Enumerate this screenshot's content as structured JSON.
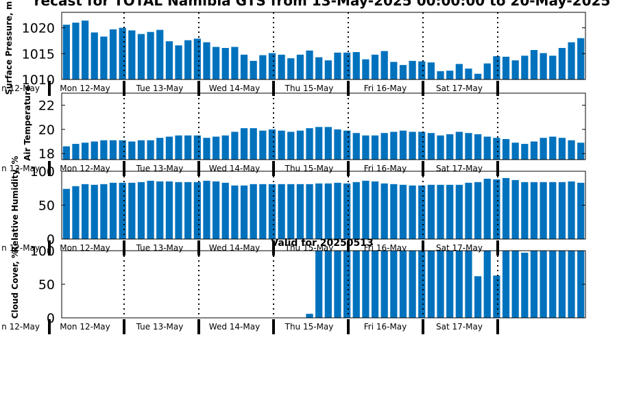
{
  "title": "recast for TOTAL Namibia GTS from 13-May-2025 00:00:00 to 20-May-2025",
  "subtitle": "Valid for 20250513",
  "colors": {
    "bar": "#0072bd",
    "axis": "#000000"
  },
  "day_labels": [
    "Mon 12-May",
    "Tue 13-May",
    "Wed 14-May",
    "Thu 15-May",
    "Fri 16-May",
    "Sat 17-May"
  ],
  "left_edge_day_label": "n 12-May",
  "chart_data": [
    {
      "type": "bar",
      "ylabel": "Surface Pressure, m",
      "ylim": [
        1010,
        1023
      ],
      "yticks": [
        1010,
        1015,
        1020
      ],
      "values": [
        1020.6,
        1021.0,
        1021.4,
        1019.1,
        1018.3,
        1019.7,
        1020.0,
        1019.5,
        1018.8,
        1019.2,
        1019.6,
        1017.4,
        1016.6,
        1017.6,
        1017.9,
        1017.2,
        1016.3,
        1016.1,
        1016.3,
        1014.8,
        1013.6,
        1014.7,
        1015.1,
        1014.8,
        1014.1,
        1014.8,
        1015.6,
        1014.3,
        1013.7,
        1015.2,
        1015.2,
        1015.3,
        1013.9,
        1014.8,
        1015.5,
        1013.4,
        1012.8,
        1013.6,
        1013.5,
        1013.3,
        1011.6,
        1011.7,
        1013.0,
        1012.1,
        1011.1,
        1013.1,
        1014.5,
        1014.4,
        1013.7,
        1014.6,
        1015.7,
        1015.1,
        1014.6,
        1016.1,
        1017.2,
        1018.0
      ]
    },
    {
      "type": "bar",
      "ylabel": "Air Temperature",
      "ylim": [
        17.5,
        23
      ],
      "yticks": [
        18,
        20,
        22
      ],
      "values": [
        18.6,
        18.8,
        18.9,
        19.0,
        19.1,
        19.1,
        19.1,
        19.0,
        19.1,
        19.1,
        19.3,
        19.4,
        19.5,
        19.5,
        19.5,
        19.3,
        19.4,
        19.5,
        19.8,
        20.1,
        20.1,
        19.9,
        20.0,
        19.9,
        19.8,
        19.9,
        20.1,
        20.2,
        20.2,
        20.0,
        19.9,
        19.7,
        19.5,
        19.5,
        19.7,
        19.8,
        19.9,
        19.8,
        19.8,
        19.7,
        19.5,
        19.6,
        19.8,
        19.7,
        19.6,
        19.4,
        19.3,
        19.2,
        18.9,
        18.8,
        19.0,
        19.3,
        19.4,
        19.3,
        19.1,
        18.9
      ]
    },
    {
      "type": "bar",
      "ylabel": "Relative Humidity, %",
      "ylim": [
        0,
        100
      ],
      "yticks": [
        0,
        50,
        100
      ],
      "values": [
        74,
        78,
        81,
        80,
        81,
        83,
        83,
        83,
        84,
        86,
        85,
        85,
        84,
        84,
        84,
        86,
        85,
        83,
        79,
        79,
        81,
        81,
        81,
        81,
        81,
        81,
        81,
        82,
        82,
        83,
        82,
        84,
        86,
        85,
        82,
        81,
        80,
        79,
        79,
        80,
        80,
        80,
        80,
        83,
        84,
        89,
        88,
        90,
        87,
        84,
        84,
        84,
        84,
        84,
        85,
        83
      ]
    },
    {
      "type": "bar",
      "ylabel": "Cloud Cover, %",
      "ylim": [
        0,
        100
      ],
      "yticks": [
        0,
        50,
        100
      ],
      "values": [
        0,
        0,
        0,
        0,
        0,
        0,
        0,
        0,
        0,
        0,
        0,
        0,
        0,
        0,
        0,
        0,
        0,
        0,
        0,
        0,
        0,
        0,
        0,
        0,
        0,
        0,
        6,
        100,
        100,
        100,
        100,
        100,
        100,
        100,
        100,
        100,
        100,
        100,
        100,
        100,
        100,
        100,
        100,
        100,
        62,
        100,
        63,
        100,
        100,
        97,
        100,
        100,
        100,
        100,
        100,
        100
      ]
    }
  ]
}
